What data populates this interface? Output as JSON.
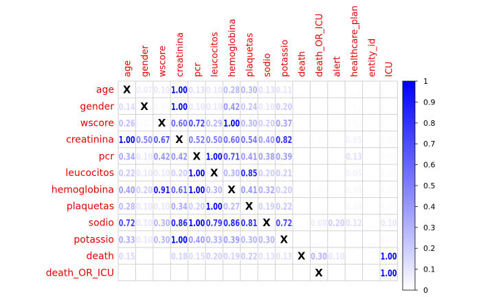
{
  "chart_data": {
    "type": "heatmap",
    "title": "",
    "xlabel": "",
    "ylabel": "",
    "columns": [
      "age",
      "gender",
      "wscore",
      "creatinina",
      "pcr",
      "leucocitos",
      "hemoglobina",
      "plaquetas",
      "sodio",
      "potassio",
      "death",
      "death_OR_ICU",
      "alert",
      "healthcare_plan",
      "entity_id",
      "ICU"
    ],
    "rows": [
      "age",
      "gender",
      "wscore",
      "creatinina",
      "pcr",
      "leucocitos",
      "hemoglobina",
      "plaquetas",
      "sodio",
      "potassio",
      "death",
      "death_OR_ICU"
    ],
    "cells": [
      [
        null,
        0.07,
        0.1,
        1.0,
        0.13,
        0.1,
        0.28,
        0.3,
        0.13,
        0.11,
        null,
        null,
        null,
        null,
        null,
        null
      ],
      [
        0.14,
        null,
        0.03,
        1.0,
        0.1,
        0.1,
        0.42,
        0.24,
        0.1,
        0.2,
        null,
        null,
        null,
        0.01,
        null,
        null
      ],
      [
        0.26,
        0.02,
        null,
        0.6,
        0.72,
        0.29,
        1.0,
        0.3,
        0.2,
        0.37,
        null,
        null,
        null,
        0.02,
        null,
        null
      ],
      [
        1.0,
        0.5,
        0.67,
        null,
        0.52,
        0.5,
        0.6,
        0.54,
        0.4,
        0.82,
        null,
        0.01,
        null,
        0.05,
        null,
        0.02
      ],
      [
        0.34,
        0.1,
        0.42,
        0.42,
        null,
        1.0,
        0.71,
        0.41,
        0.38,
        0.39,
        null,
        null,
        null,
        0.13,
        null,
        0.02
      ],
      [
        0.22,
        0.1,
        0.1,
        0.2,
        1.0,
        null,
        0.3,
        0.85,
        0.2,
        0.21,
        null,
        null,
        null,
        0.05,
        null,
        0.02
      ],
      [
        0.4,
        0.2,
        0.91,
        0.61,
        1.0,
        0.3,
        null,
        0.41,
        0.32,
        0.2,
        null,
        0.01,
        null,
        0.04,
        null,
        0.02
      ],
      [
        0.28,
        0.1,
        0.1,
        0.34,
        0.2,
        1.0,
        0.27,
        null,
        0.19,
        0.22,
        null,
        null,
        null,
        0.04,
        null,
        0.02
      ],
      [
        0.72,
        0.1,
        0.3,
        0.86,
        1.0,
        0.79,
        0.86,
        0.81,
        null,
        0.72,
        null,
        0.08,
        0.2,
        0.12,
        null,
        0.1
      ],
      [
        0.33,
        0.1,
        0.3,
        1.0,
        0.4,
        0.33,
        0.39,
        0.3,
        0.3,
        null,
        null,
        null,
        null,
        null,
        null,
        0.02
      ],
      [
        0.15,
        null,
        null,
        0.18,
        0.15,
        0.2,
        0.19,
        0.22,
        0.13,
        0.13,
        null,
        0.3,
        0.1,
        null,
        null,
        1.0
      ],
      [
        null,
        null,
        null,
        null,
        null,
        null,
        null,
        null,
        null,
        null,
        null,
        null,
        null,
        null,
        null,
        1.0
      ]
    ],
    "cell_labels": [
      [
        "X",
        "0.07",
        "0.10",
        "1.00",
        "0.13",
        "0.10",
        "0.28",
        "0.30",
        "0.13",
        "0.11",
        "",
        "",
        "",
        "",
        "",
        ""
      ],
      [
        "0.14",
        "X",
        "0.03",
        "1.00",
        "0.10",
        "0.10",
        "0.42",
        "0.24",
        "0.10",
        "0.20",
        "",
        "",
        "",
        "0.01",
        "",
        ""
      ],
      [
        "0.26",
        "0.02",
        "X",
        "0.60",
        "0.72",
        "0.29",
        "1.00",
        "0.30",
        "0.20",
        "0.37",
        "",
        "",
        "",
        "0.02",
        "",
        ""
      ],
      [
        "1.00",
        "0.50",
        "0.67",
        "X",
        "0.52",
        "0.50",
        "0.60",
        "0.54",
        "0.40",
        "0.82",
        "",
        "0.01",
        "",
        "0.05",
        "",
        "0.02"
      ],
      [
        "0.34",
        "0.10",
        "0.42",
        "0.42",
        "X",
        "1.00",
        "0.71",
        "0.41",
        "0.38",
        "0.39",
        "",
        "",
        "",
        "0.13",
        "",
        "0.02"
      ],
      [
        "0.22",
        "0.10",
        "0.10",
        "0.20",
        "1.00",
        "X",
        "0.30",
        "0.85",
        "0.20",
        "0.21",
        "",
        "",
        "",
        "0.05",
        "",
        "0.02"
      ],
      [
        "0.40",
        "0.20",
        "0.91",
        "0.61",
        "1.00",
        "0.30",
        "X",
        "0.41",
        "0.32",
        "0.20",
        "",
        "0.01",
        "",
        "0.04",
        "",
        "0.02"
      ],
      [
        "0.28",
        "0.10",
        "0.10",
        "0.34",
        "0.20",
        "1.00",
        "0.27",
        "X",
        "0.19",
        "0.22",
        "",
        "",
        "",
        "0.04",
        "",
        "0.02"
      ],
      [
        "0.72",
        "0.10",
        "0.30",
        "0.86",
        "1.00",
        "0.79",
        "0.86",
        "0.81",
        "X",
        "0.72",
        "",
        "0.08",
        "0.20",
        "0.12",
        "",
        "0.10"
      ],
      [
        "0.33",
        "0.10",
        "0.30",
        "1.00",
        "0.40",
        "0.33",
        "0.39",
        "0.30",
        "0.30",
        "X",
        "",
        "",
        "",
        "",
        "",
        "0.02"
      ],
      [
        "0.15",
        "",
        "",
        "0.18",
        "0.15",
        "0.20",
        "0.19",
        "0.22",
        "0.13",
        "0.13",
        "X",
        "0.30",
        "0.10",
        "",
        "",
        "1.00"
      ],
      [
        "",
        "",
        "",
        "",
        "",
        "",
        "",
        "",
        "",
        "",
        "",
        "X",
        "",
        "",
        "",
        "1.00"
      ]
    ],
    "colorbar": {
      "ticks": [
        "1",
        "0.9",
        "0.8",
        "0.7",
        "0.6",
        "0.5",
        "0.4",
        "0.3",
        "0.2",
        "0.1",
        "0"
      ],
      "range": [
        0,
        1
      ],
      "low_color": "#ffffff",
      "high_color": "#0000ff"
    },
    "label_color": "#e00000",
    "grid": true
  }
}
